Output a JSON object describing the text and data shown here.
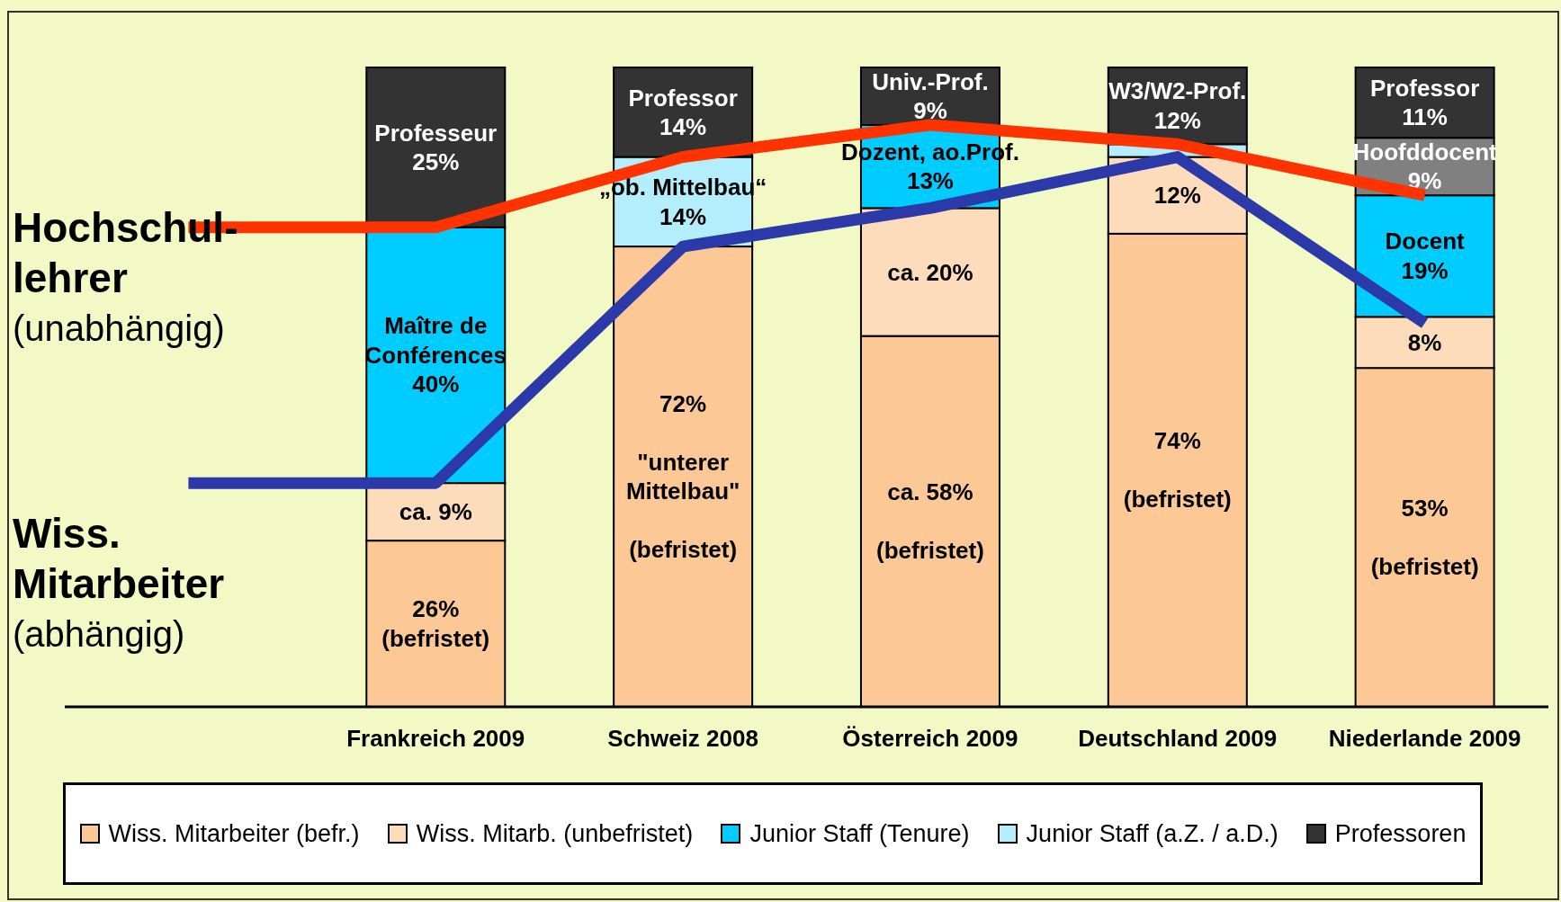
{
  "chart_data": {
    "type": "bar",
    "stacked": true,
    "categories": [
      null,
      "Frankreich 2009",
      "Schweiz 2008",
      "Österreich 2009",
      "Deutschland 2009",
      "Niederlande 2009"
    ],
    "series": [
      {
        "name": "Wiss. Mitarbeiter (befr.)",
        "color": "#fcc896",
        "values": [
          null,
          26,
          72,
          58,
          74,
          53
        ],
        "value_labels": [
          null,
          "26%\n(befristet)",
          "72%\n\n\"unterer\nMittelbau\"\n\n(befristet)",
          "ca. 58%\n\n(befristet)",
          "74%\n\n(befristet)",
          "53%\n\n(befristet)"
        ]
      },
      {
        "name": "Wiss. Mitarb. (unbefristet)",
        "color": "#fddcbc",
        "values": [
          null,
          9,
          null,
          20,
          12,
          8
        ],
        "value_labels": [
          null,
          "ca. 9%",
          null,
          "ca. 20%",
          "12%",
          "8%"
        ]
      },
      {
        "name": "Junior Staff (Tenure)",
        "color": "#00ccff",
        "values": [
          null,
          40,
          null,
          13,
          null,
          19
        ],
        "value_labels": [
          null,
          "Maître de\nConférences\n40%",
          null,
          "Dozent, ao.Prof.\n13%",
          null,
          "Docent\n19%"
        ]
      },
      {
        "name": "Junior Staff (a.Z. / a.D.)",
        "color": "#b4eefc",
        "values": [
          null,
          null,
          14,
          null,
          2,
          null
        ],
        "value_labels": [
          null,
          null,
          "„ob. Mittelbau“\n14%",
          null,
          null,
          null
        ]
      },
      {
        "color": "#808080",
        "values": [
          null,
          null,
          null,
          null,
          null,
          9
        ],
        "value_labels": [
          null,
          null,
          null,
          null,
          null,
          "Hoofddocent\n9%"
        ]
      },
      {
        "name": "Professoren",
        "color": "#333333",
        "values": [
          null,
          25,
          14,
          9,
          12,
          11
        ],
        "value_labels": [
          null,
          "Professeur\n25%",
          "Professor\n14%",
          "Univ.-Prof.\n9%",
          "W3/W2-Prof.\n12%",
          "Professor\n11%"
        ]
      },
      {
        "type": "line",
        "color": "#ff3300",
        "values": [
          75,
          75,
          86,
          91,
          88,
          80
        ]
      },
      {
        "type": "line",
        "color": "#2b3aa8",
        "values": [
          35,
          35,
          72,
          78,
          86,
          60
        ]
      }
    ],
    "annotations": [
      "Hochschul-\nlehrer\n(unabhängig)",
      "Wiss.\nMitarbeiter\n(abhängig)"
    ],
    "legend": "bottom",
    "grid": false
  }
}
